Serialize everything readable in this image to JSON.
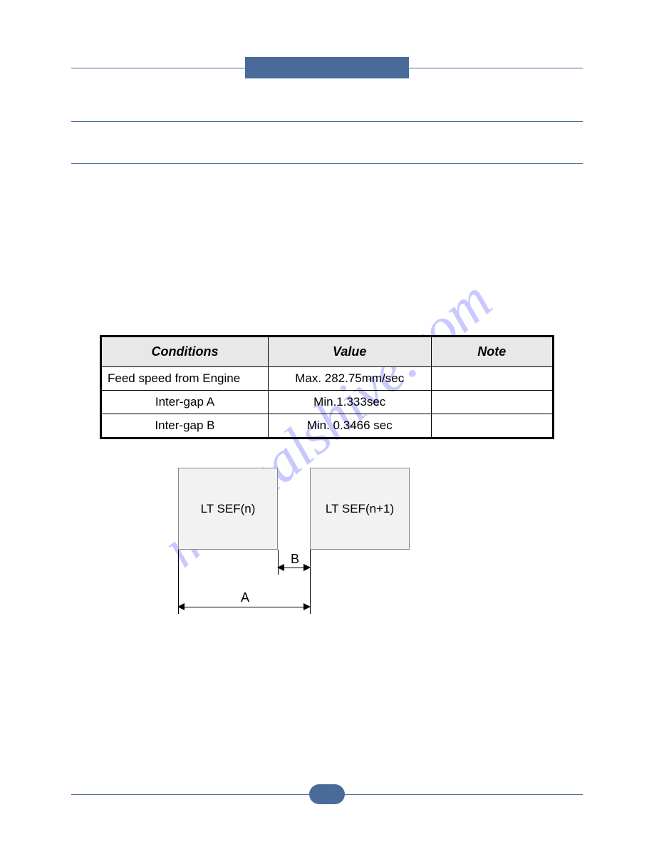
{
  "watermark": "manualshive.com",
  "colors": {
    "accent": "#4a6a9a",
    "table_header_bg": "#e8e8e8",
    "box_bg": "#f2f2f2",
    "watermark_color": "#8a8aff"
  },
  "table": {
    "headers": {
      "conditions": "Conditions",
      "value": "Value",
      "note": "Note"
    },
    "rows": [
      {
        "conditions": "Feed speed from Engine",
        "value": "Max. 282.75mm/sec",
        "note": ""
      },
      {
        "conditions": "Inter-gap A",
        "value": "Min.1.333sec",
        "note": ""
      },
      {
        "conditions": "Inter-gap B",
        "value": "Min. 0.3466 sec",
        "note": ""
      }
    ]
  },
  "diagram": {
    "box_left": "LT SEF(n)",
    "box_right": "LT SEF(n+1)",
    "label_a": "A",
    "label_b": "B"
  }
}
